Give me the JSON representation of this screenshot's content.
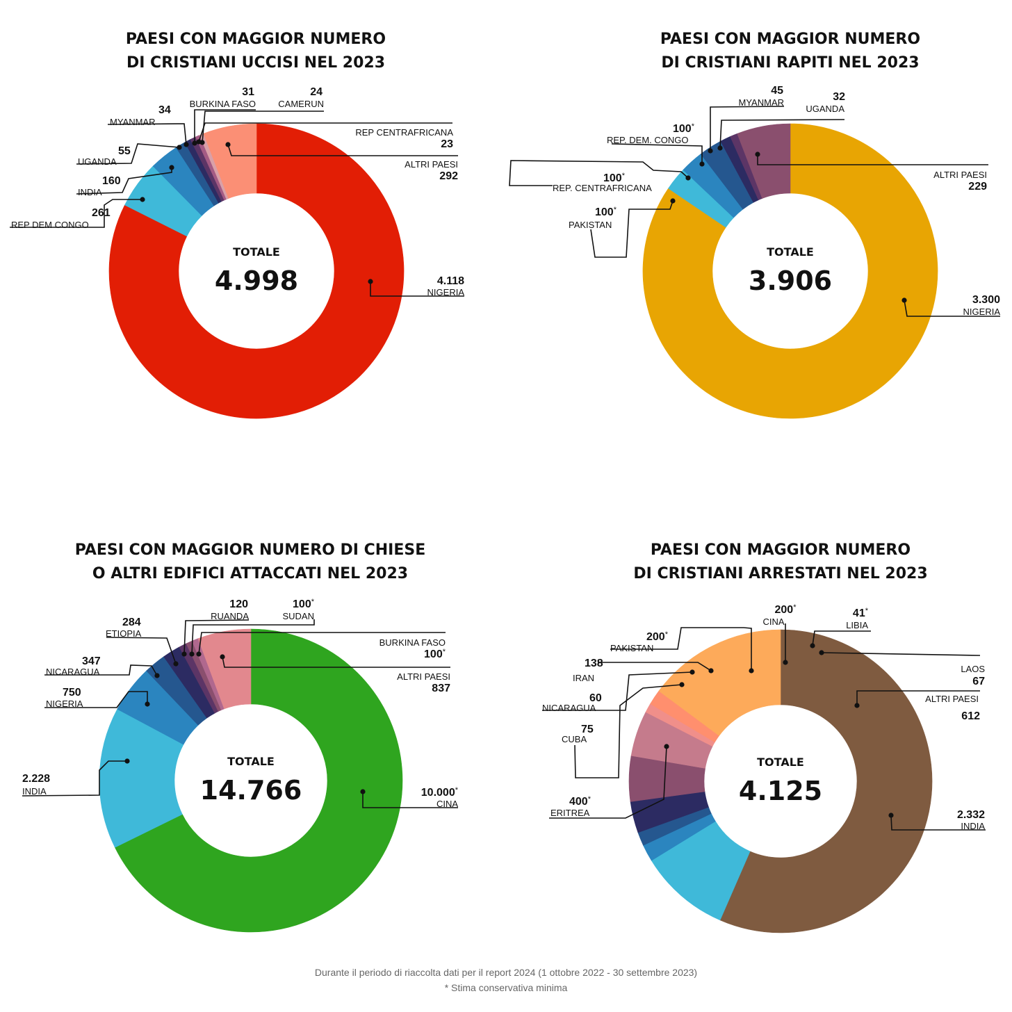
{
  "chart_data": [
    {
      "type": "pie",
      "title": [
        "PAESI CON MAGGIOR NUMERO",
        "DI CRISTIANI UCCISI NEL 2023"
      ],
      "total_label": "TOTALE",
      "total_value": "4.998",
      "slices": [
        {
          "label": "NIGERIA",
          "value": 4118,
          "display": "4.118",
          "color": "#e21e05"
        },
        {
          "label": "REP DEM CONGO",
          "value": 261,
          "display": "261",
          "color": "#3fb9d9"
        },
        {
          "label": "INDIA",
          "value": 160,
          "display": "160",
          "color": "#2b85bf"
        },
        {
          "label": "UGANDA",
          "value": 55,
          "display": "55",
          "color": "#25578f"
        },
        {
          "label": "MYANMAR",
          "value": 34,
          "display": "34",
          "color": "#2c2b62"
        },
        {
          "label": "BURKINA FASO",
          "value": 31,
          "display": "31",
          "color": "#5c3566"
        },
        {
          "label": "CAMERUN",
          "value": 24,
          "display": "24",
          "color": "#a45b84"
        },
        {
          "label": "REP CENTRAFRICANA",
          "value": 23,
          "display": "23",
          "color": "#d9a0a8"
        },
        {
          "label": "ALTRI PAESI",
          "value": 292,
          "display": "292",
          "color": "#fb8f75"
        }
      ]
    },
    {
      "type": "pie",
      "title": [
        "PAESI CON MAGGIOR NUMERO",
        "DI CRISTIANI RAPITI NEL 2023"
      ],
      "total_label": "TOTALE",
      "total_value": "3.906",
      "slices": [
        {
          "label": "NIGERIA",
          "value": 3300,
          "display": "3.300",
          "color": "#e8a503"
        },
        {
          "label": "PAKISTAN",
          "value": 100,
          "display": "100",
          "star": "*",
          "color": "#3fb9d9"
        },
        {
          "label": "REP. CENTRAFRICANA",
          "value": 100,
          "display": "100",
          "star": "*",
          "color": "#2b85bf"
        },
        {
          "label": "REP. DEM. CONGO",
          "value": 100,
          "display": "100",
          "star": "*",
          "color": "#25578f"
        },
        {
          "label": "MYANMAR",
          "value": 45,
          "display": "45",
          "color": "#2c2b62"
        },
        {
          "label": "UGANDA",
          "value": 32,
          "display": "32",
          "color": "#5c3566"
        },
        {
          "label": "ALTRI PAESI",
          "value": 229,
          "display": "229",
          "color": "#8a4f6e"
        }
      ]
    },
    {
      "type": "pie",
      "title": [
        "PAESI CON MAGGIOR NUMERO DI CHIESE",
        "O ALTRI EDIFICI ATTACCATI NEL 2023"
      ],
      "total_label": "TOTALE",
      "total_value": "14.766",
      "slices": [
        {
          "label": "CINA",
          "value": 10000,
          "display": "10.000",
          "star": "*",
          "color": "#2fa51f"
        },
        {
          "label": "INDIA",
          "value": 2228,
          "display": "2.228",
          "color": "#3fb9d9"
        },
        {
          "label": "NIGERIA",
          "value": 750,
          "display": "750",
          "color": "#2b85bf"
        },
        {
          "label": "NICARAGUA",
          "value": 347,
          "display": "347",
          "color": "#25578f"
        },
        {
          "label": "ETIOPIA",
          "value": 284,
          "display": "284",
          "color": "#2c2b62"
        },
        {
          "label": "RUANDA",
          "value": 120,
          "display": "120",
          "color": "#5c3566"
        },
        {
          "label": "SUDAN",
          "value": 100,
          "display": "100",
          "star": "*",
          "color": "#8a4f6e"
        },
        {
          "label": "BURKINA FASO",
          "value": 100,
          "display": "100",
          "star": "*",
          "color": "#b0688e"
        },
        {
          "label": "ALTRI PAESI",
          "value": 837,
          "display": "837",
          "color": "#e2888e"
        }
      ]
    },
    {
      "type": "pie",
      "title": [
        "PAESI CON MAGGIOR NUMERO",
        "DI CRISTIANI ARRESTATI NEL 2023"
      ],
      "total_label": "TOTALE",
      "total_value": "4.125",
      "slices": [
        {
          "label": "INDIA",
          "value": 2332,
          "display": "2.332",
          "color": "#7f5b40"
        },
        {
          "label": "ERITREA",
          "value": 400,
          "display": "400",
          "star": "*",
          "color": "#3fb9d9"
        },
        {
          "label": "CUBA",
          "value": 75,
          "display": "75",
          "color": "#2b85bf"
        },
        {
          "label": "NICARAGUA",
          "value": 60,
          "display": "60",
          "color": "#25578f"
        },
        {
          "label": "IRAN",
          "value": 138,
          "display": "138",
          "color": "#2c2b62"
        },
        {
          "label": "PAKISTAN",
          "value": 200,
          "display": "200",
          "star": "*",
          "color": "#8a4f6e"
        },
        {
          "label": "CINA",
          "value": 200,
          "display": "200",
          "star": "*",
          "color": "#c57b8c"
        },
        {
          "label": "LIBIA",
          "value": 41,
          "display": "41",
          "star": "*",
          "color": "#f08f8a"
        },
        {
          "label": "LAOS",
          "value": 67,
          "display": "67",
          "color": "#ff8f6e"
        },
        {
          "label": "ALTRI PAESI",
          "value": 612,
          "display": "612",
          "color": "#fdaa5a"
        }
      ]
    }
  ],
  "footer": {
    "line1": "Durante il periodo di riaccolta dati per il report 2024 (1 ottobre 2022 - 30 settembre 2023)",
    "line2": "* Stima conservativa minima"
  }
}
